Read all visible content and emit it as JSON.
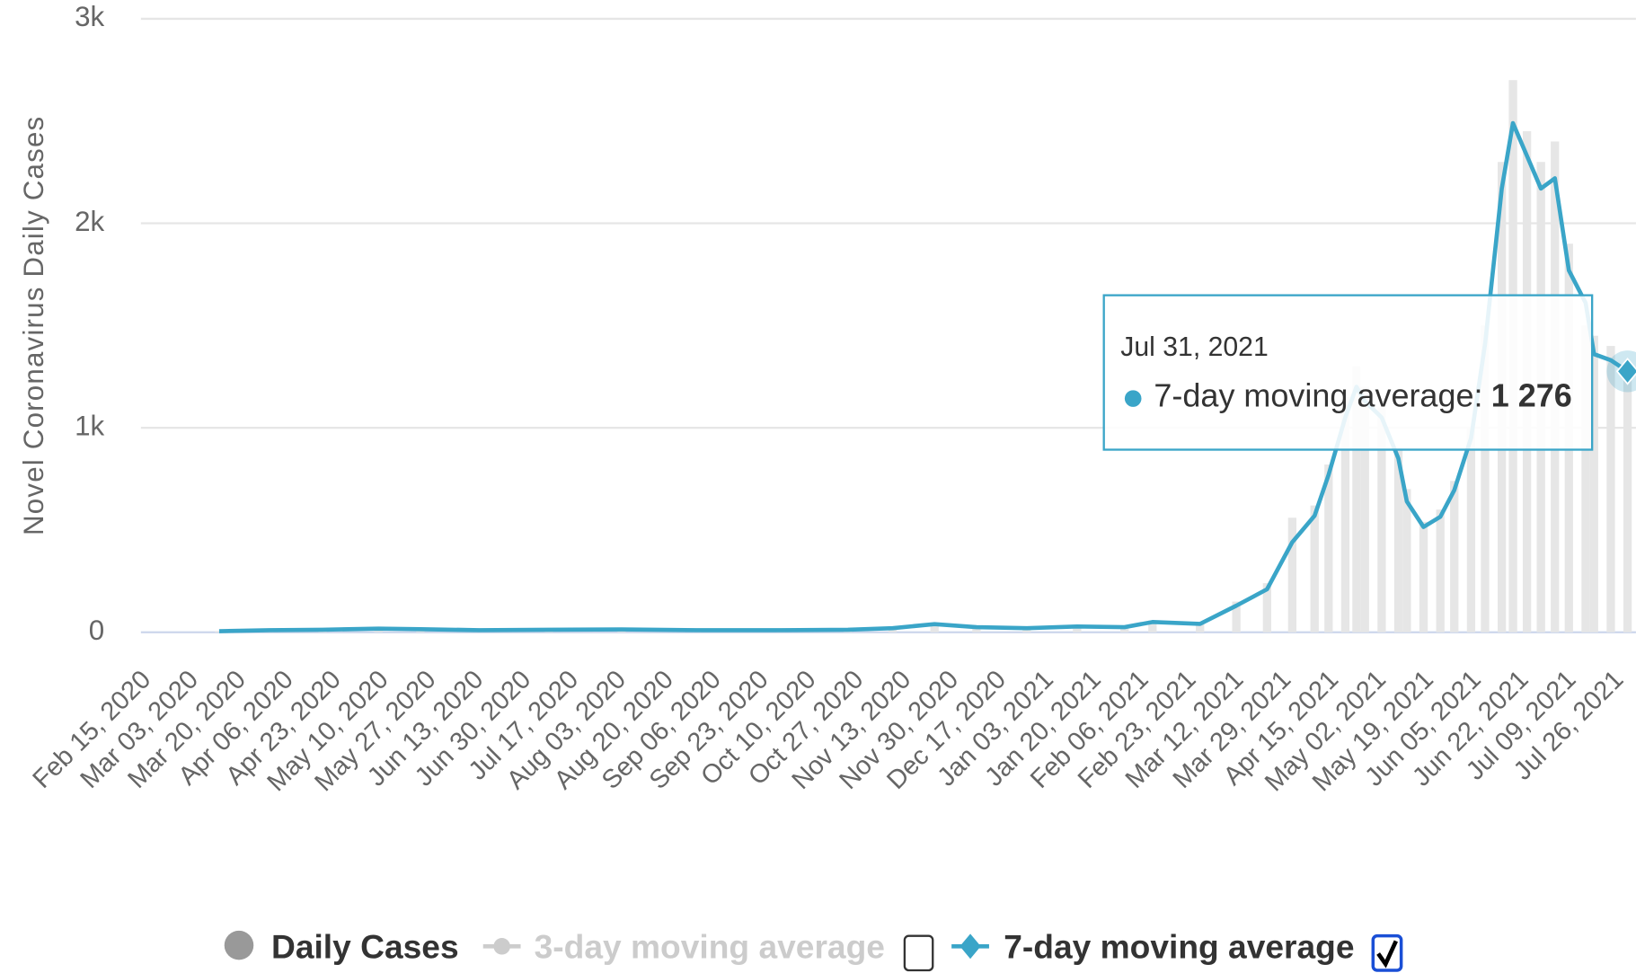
{
  "chart_data": {
    "type": "line",
    "ylabel": "Novel Coronavirus Daily Cases",
    "x": [
      "2020-03-14",
      "2020-04-01",
      "2020-04-20",
      "2020-05-10",
      "2020-05-25",
      "2020-06-15",
      "2020-07-10",
      "2020-08-05",
      "2020-09-01",
      "2020-10-01",
      "2020-10-25",
      "2020-11-10",
      "2020-11-25",
      "2020-12-10",
      "2020-12-28",
      "2021-01-15",
      "2021-02-01",
      "2021-02-11",
      "2021-02-28",
      "2021-03-13",
      "2021-03-24",
      "2021-04-02",
      "2021-04-10",
      "2021-04-15",
      "2021-04-21",
      "2021-04-25",
      "2021-04-28",
      "2021-05-04",
      "2021-05-10",
      "2021-05-13",
      "2021-05-19",
      "2021-05-25",
      "2021-05-30",
      "2021-06-05",
      "2021-06-10",
      "2021-06-16",
      "2021-06-20",
      "2021-06-25",
      "2021-06-30",
      "2021-07-05",
      "2021-07-10",
      "2021-07-16",
      "2021-07-19",
      "2021-07-25",
      "2021-07-31"
    ],
    "series": [
      {
        "name": "Daily Cases",
        "type": "bar",
        "color": "#e6e6e6",
        "legend_color": "#999999",
        "values": [
          6,
          12,
          14,
          22,
          16,
          12,
          14,
          16,
          12,
          11,
          14,
          24,
          45,
          28,
          22,
          32,
          28,
          58,
          46,
          150,
          240,
          560,
          620,
          820,
          1150,
          1300,
          1200,
          1100,
          900,
          700,
          540,
          600,
          740,
          1000,
          1500,
          2300,
          2700,
          2450,
          2300,
          2400,
          1900,
          1500,
          1450,
          1400,
          1300
        ]
      },
      {
        "name": "3-day moving average",
        "type": "line",
        "color": "#cccccc",
        "visible": false
      },
      {
        "name": "7-day moving average",
        "type": "line",
        "color": "#3aa5c8",
        "values": [
          5,
          10,
          12,
          18,
          15,
          10,
          12,
          14,
          10,
          10,
          12,
          20,
          40,
          25,
          20,
          28,
          25,
          50,
          41,
          130,
          210,
          440,
          570,
          770,
          1050,
          1200,
          1130,
          1050,
          850,
          640,
          515,
          565,
          695,
          950,
          1410,
          2170,
          2490,
          2330,
          2170,
          2220,
          1770,
          1610,
          1360,
          1330,
          1276
        ]
      }
    ],
    "xlim": [
      "2020-02-15",
      "2021-08-03"
    ],
    "xticks": [
      {
        "value": "2020-02-15",
        "label": "Feb 15, 2020"
      },
      {
        "value": "2020-03-03",
        "label": "Mar 03, 2020"
      },
      {
        "value": "2020-03-20",
        "label": "Mar 20, 2020"
      },
      {
        "value": "2020-04-06",
        "label": "Apr 06, 2020"
      },
      {
        "value": "2020-04-23",
        "label": "Apr 23, 2020"
      },
      {
        "value": "2020-05-10",
        "label": "May 10, 2020"
      },
      {
        "value": "2020-05-27",
        "label": "May 27, 2020"
      },
      {
        "value": "2020-06-13",
        "label": "Jun 13, 2020"
      },
      {
        "value": "2020-06-30",
        "label": "Jun 30, 2020"
      },
      {
        "value": "2020-07-17",
        "label": "Jul 17, 2020"
      },
      {
        "value": "2020-08-03",
        "label": "Aug 03, 2020"
      },
      {
        "value": "2020-08-20",
        "label": "Aug 20, 2020"
      },
      {
        "value": "2020-09-06",
        "label": "Sep 06, 2020"
      },
      {
        "value": "2020-09-23",
        "label": "Sep 23, 2020"
      },
      {
        "value": "2020-10-10",
        "label": "Oct 10, 2020"
      },
      {
        "value": "2020-10-27",
        "label": "Oct 27, 2020"
      },
      {
        "value": "2020-11-13",
        "label": "Nov 13, 2020"
      },
      {
        "value": "2020-11-30",
        "label": "Nov 30, 2020"
      },
      {
        "value": "2020-12-17",
        "label": "Dec 17, 2020"
      },
      {
        "value": "2021-01-03",
        "label": "Jan 03, 2021"
      },
      {
        "value": "2021-01-20",
        "label": "Jan 20, 2021"
      },
      {
        "value": "2021-02-06",
        "label": "Feb 06, 2021"
      },
      {
        "value": "2021-02-23",
        "label": "Feb 23, 2021"
      },
      {
        "value": "2021-03-12",
        "label": "Mar 12, 2021"
      },
      {
        "value": "2021-03-29",
        "label": "Mar 29, 2021"
      },
      {
        "value": "2021-04-15",
        "label": "Apr 15, 2021"
      },
      {
        "value": "2021-05-02",
        "label": "May 02, 2021"
      },
      {
        "value": "2021-05-19",
        "label": "May 19, 2021"
      },
      {
        "value": "2021-06-05",
        "label": "Jun 05, 2021"
      },
      {
        "value": "2021-06-22",
        "label": "Jun 22, 2021"
      },
      {
        "value": "2021-07-09",
        "label": "Jul 09, 2021"
      },
      {
        "value": "2021-07-26",
        "label": "Jul 26, 2021"
      }
    ],
    "ylim": [
      0,
      3000
    ],
    "yticks": [
      0,
      {
        "value": 1000,
        "label": "1k"
      },
      {
        "value": 2000,
        "label": "2k"
      },
      {
        "value": 3000,
        "label": "3k"
      }
    ],
    "grid": true,
    "legend": "bottom",
    "tooltip": {
      "date": "Jul 31, 2021",
      "label": "7-day moving average:",
      "value": 1276,
      "value_label": "1 276"
    }
  }
}
